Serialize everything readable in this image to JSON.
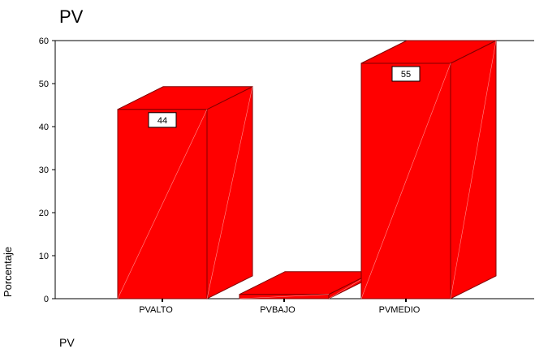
{
  "chart_data": {
    "type": "bar",
    "title": "PV",
    "xlabel": "PV",
    "ylabel": "Porcentaje",
    "categories": [
      "PVALTO",
      "PVBAJO",
      "PVMEDIO"
    ],
    "values": [
      44,
      1,
      55
    ],
    "data_labels": [
      "44",
      "",
      "55"
    ],
    "ylim": [
      0,
      60
    ],
    "yticks": [
      0,
      10,
      20,
      30,
      40,
      50,
      60
    ],
    "grid": false,
    "bar_color": "#ff0000",
    "edge_color": "#800000",
    "style": "3d"
  }
}
